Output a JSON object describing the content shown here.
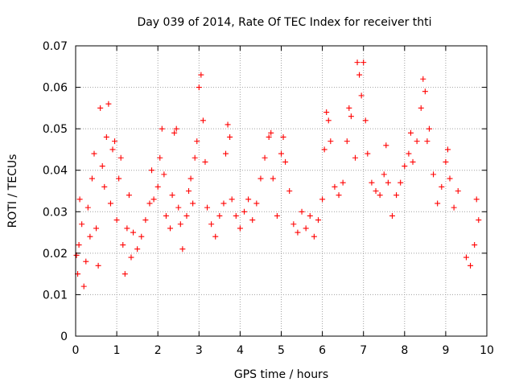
{
  "chart_data": {
    "type": "scatter",
    "title": "Day 039 of 2014, Rate Of TEC Index for receiver thti",
    "xlabel": "GPS time / hours",
    "ylabel": "ROTI / TECUs",
    "xlim": [
      0,
      10
    ],
    "ylim": [
      0,
      0.07
    ],
    "xticks": [
      "0",
      "1",
      "2",
      "3",
      "4",
      "5",
      "6",
      "7",
      "8",
      "9",
      "10"
    ],
    "yticks": [
      "0",
      "0.01",
      "0.02",
      "0.03",
      "0.04",
      "0.05",
      "0.06",
      "0.07"
    ],
    "grid": true,
    "marker": "+",
    "color": "#ff0000",
    "series": [
      {
        "name": "ROTI",
        "points": [
          [
            0.02,
            0.0195
          ],
          [
            0.05,
            0.015
          ],
          [
            0.08,
            0.022
          ],
          [
            0.1,
            0.033
          ],
          [
            0.15,
            0.027
          ],
          [
            0.2,
            0.012
          ],
          [
            0.25,
            0.018
          ],
          [
            0.3,
            0.031
          ],
          [
            0.35,
            0.024
          ],
          [
            0.4,
            0.038
          ],
          [
            0.45,
            0.044
          ],
          [
            0.5,
            0.026
          ],
          [
            0.55,
            0.017
          ],
          [
            0.6,
            0.055
          ],
          [
            0.65,
            0.041
          ],
          [
            0.7,
            0.036
          ],
          [
            0.75,
            0.048
          ],
          [
            0.8,
            0.056
          ],
          [
            0.85,
            0.032
          ],
          [
            0.9,
            0.045
          ],
          [
            0.95,
            0.047
          ],
          [
            1.0,
            0.028
          ],
          [
            1.05,
            0.038
          ],
          [
            1.1,
            0.043
          ],
          [
            1.15,
            0.022
          ],
          [
            1.2,
            0.015
          ],
          [
            1.25,
            0.026
          ],
          [
            1.3,
            0.034
          ],
          [
            1.35,
            0.019
          ],
          [
            1.4,
            0.025
          ],
          [
            1.5,
            0.021
          ],
          [
            1.6,
            0.024
          ],
          [
            1.7,
            0.028
          ],
          [
            1.8,
            0.032
          ],
          [
            1.85,
            0.04
          ],
          [
            1.9,
            0.033
          ],
          [
            2.0,
            0.036
          ],
          [
            2.05,
            0.043
          ],
          [
            2.1,
            0.05
          ],
          [
            2.15,
            0.039
          ],
          [
            2.2,
            0.029
          ],
          [
            2.3,
            0.026
          ],
          [
            2.35,
            0.034
          ],
          [
            2.4,
            0.049
          ],
          [
            2.45,
            0.05
          ],
          [
            2.5,
            0.031
          ],
          [
            2.55,
            0.027
          ],
          [
            2.6,
            0.021
          ],
          [
            2.7,
            0.029
          ],
          [
            2.75,
            0.035
          ],
          [
            2.8,
            0.038
          ],
          [
            2.85,
            0.032
          ],
          [
            2.9,
            0.043
          ],
          [
            2.95,
            0.047
          ],
          [
            3.0,
            0.06
          ],
          [
            3.05,
            0.063
          ],
          [
            3.1,
            0.052
          ],
          [
            3.15,
            0.042
          ],
          [
            3.2,
            0.031
          ],
          [
            3.3,
            0.027
          ],
          [
            3.4,
            0.024
          ],
          [
            3.5,
            0.029
          ],
          [
            3.6,
            0.032
          ],
          [
            3.65,
            0.044
          ],
          [
            3.7,
            0.051
          ],
          [
            3.75,
            0.048
          ],
          [
            3.8,
            0.033
          ],
          [
            3.9,
            0.029
          ],
          [
            4.0,
            0.026
          ],
          [
            4.1,
            0.03
          ],
          [
            4.2,
            0.033
          ],
          [
            4.3,
            0.028
          ],
          [
            4.4,
            0.032
          ],
          [
            4.5,
            0.038
          ],
          [
            4.6,
            0.043
          ],
          [
            4.7,
            0.048
          ],
          [
            4.75,
            0.049
          ],
          [
            4.8,
            0.038
          ],
          [
            4.9,
            0.029
          ],
          [
            5.0,
            0.044
          ],
          [
            5.05,
            0.048
          ],
          [
            5.1,
            0.042
          ],
          [
            5.2,
            0.035
          ],
          [
            5.3,
            0.027
          ],
          [
            5.4,
            0.025
          ],
          [
            5.5,
            0.03
          ],
          [
            5.6,
            0.026
          ],
          [
            5.7,
            0.029
          ],
          [
            5.8,
            0.024
          ],
          [
            5.9,
            0.028
          ],
          [
            6.0,
            0.033
          ],
          [
            6.05,
            0.045
          ],
          [
            6.1,
            0.054
          ],
          [
            6.15,
            0.052
          ],
          [
            6.2,
            0.047
          ],
          [
            6.3,
            0.036
          ],
          [
            6.4,
            0.034
          ],
          [
            6.5,
            0.037
          ],
          [
            6.6,
            0.047
          ],
          [
            6.65,
            0.055
          ],
          [
            6.7,
            0.053
          ],
          [
            6.8,
            0.043
          ],
          [
            6.85,
            0.066
          ],
          [
            6.9,
            0.063
          ],
          [
            6.95,
            0.058
          ],
          [
            7.0,
            0.066
          ],
          [
            7.05,
            0.052
          ],
          [
            7.1,
            0.044
          ],
          [
            7.2,
            0.037
          ],
          [
            7.3,
            0.035
          ],
          [
            7.4,
            0.034
          ],
          [
            7.5,
            0.039
          ],
          [
            7.55,
            0.046
          ],
          [
            7.6,
            0.037
          ],
          [
            7.7,
            0.029
          ],
          [
            7.8,
            0.034
          ],
          [
            7.9,
            0.037
          ],
          [
            8.0,
            0.041
          ],
          [
            8.1,
            0.044
          ],
          [
            8.15,
            0.049
          ],
          [
            8.2,
            0.042
          ],
          [
            8.3,
            0.047
          ],
          [
            8.4,
            0.055
          ],
          [
            8.45,
            0.062
          ],
          [
            8.5,
            0.059
          ],
          [
            8.55,
            0.047
          ],
          [
            8.6,
            0.05
          ],
          [
            8.7,
            0.039
          ],
          [
            8.8,
            0.032
          ],
          [
            8.9,
            0.036
          ],
          [
            9.0,
            0.042
          ],
          [
            9.05,
            0.045
          ],
          [
            9.1,
            0.038
          ],
          [
            9.2,
            0.031
          ],
          [
            9.3,
            0.035
          ],
          [
            9.5,
            0.019
          ],
          [
            9.6,
            0.017
          ],
          [
            9.7,
            0.022
          ],
          [
            9.75,
            0.033
          ],
          [
            9.8,
            0.028
          ]
        ]
      }
    ]
  }
}
